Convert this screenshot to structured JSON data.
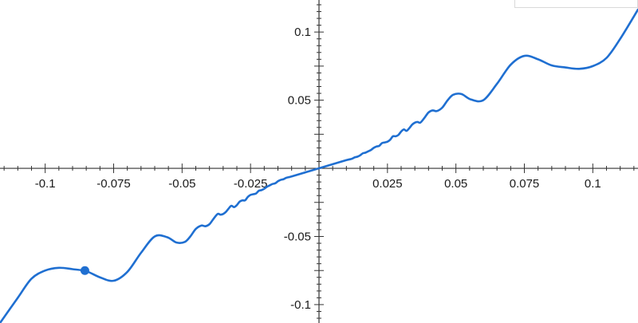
{
  "chart_data": {
    "type": "line",
    "title": "",
    "xlabel": "",
    "ylabel": "",
    "xlim": [
      -0.1165,
      0.1165
    ],
    "ylim": [
      -0.1135,
      0.1235
    ],
    "grid": false,
    "x_ticks": [
      -0.1,
      -0.075,
      -0.05,
      -0.025,
      0.025,
      0.05,
      0.075,
      0.1
    ],
    "x_tick_labels": [
      "-0.1",
      "-0.075",
      "-0.05",
      "-0.025",
      "0.025",
      "0.05",
      "0.075",
      "0.1"
    ],
    "y_ticks": [
      0.1,
      0.05,
      -0.05,
      -0.1
    ],
    "y_tick_labels": [
      "0.1",
      "0.05",
      "-0.05",
      "-0.1"
    ],
    "series": [
      {
        "color": "#1f6fd1",
        "x": [
          -0.1165,
          -0.11,
          -0.105,
          -0.1,
          -0.095,
          -0.09,
          -0.085,
          -0.08,
          -0.075,
          -0.07,
          -0.065,
          -0.06,
          -0.0555,
          -0.052,
          -0.049,
          -0.047,
          -0.045,
          -0.043,
          -0.0415,
          -0.04,
          -0.0385,
          -0.037,
          -0.036,
          -0.035,
          -0.034,
          -0.033,
          -0.032,
          -0.031,
          -0.03,
          -0.029,
          -0.028,
          -0.027,
          -0.026,
          -0.025,
          -0.024,
          -0.023,
          -0.022,
          -0.021,
          -0.02,
          -0.019,
          -0.018,
          -0.017,
          -0.016,
          -0.015,
          -0.014,
          -0.013,
          -0.012,
          -0.011,
          -0.01,
          -0.005,
          0,
          0.005,
          0.01,
          0.011,
          0.012,
          0.013,
          0.014,
          0.015,
          0.016,
          0.017,
          0.018,
          0.019,
          0.02,
          0.021,
          0.022,
          0.023,
          0.024,
          0.025,
          0.026,
          0.027,
          0.028,
          0.029,
          0.03,
          0.031,
          0.032,
          0.033,
          0.034,
          0.035,
          0.036,
          0.037,
          0.0385,
          0.04,
          0.0415,
          0.043,
          0.045,
          0.047,
          0.049,
          0.052,
          0.0555,
          0.06,
          0.065,
          0.07,
          0.075,
          0.08,
          0.085,
          0.09,
          0.095,
          0.1,
          0.105,
          0.11,
          0.1165
        ],
        "y": [
          -0.1135,
          -0.095,
          -0.081,
          -0.075,
          -0.073,
          -0.074,
          -0.0755,
          -0.08,
          -0.0825,
          -0.076,
          -0.062,
          -0.05,
          -0.0505,
          -0.0545,
          -0.054,
          -0.05,
          -0.0445,
          -0.042,
          -0.0425,
          -0.041,
          -0.037,
          -0.0335,
          -0.034,
          -0.0335,
          -0.032,
          -0.0295,
          -0.0275,
          -0.0285,
          -0.027,
          -0.0245,
          -0.0235,
          -0.0235,
          -0.021,
          -0.0195,
          -0.019,
          -0.0185,
          -0.0165,
          -0.016,
          -0.015,
          -0.0135,
          -0.0125,
          -0.0115,
          -0.011,
          -0.0095,
          -0.0085,
          -0.008,
          -0.007,
          -0.0065,
          -0.006,
          -0.003,
          0,
          0.003,
          0.006,
          0.0065,
          0.007,
          0.008,
          0.0085,
          0.0095,
          0.011,
          0.0115,
          0.0125,
          0.0135,
          0.015,
          0.016,
          0.0165,
          0.0185,
          0.019,
          0.0195,
          0.021,
          0.0235,
          0.0235,
          0.0245,
          0.027,
          0.0285,
          0.0275,
          0.0295,
          0.032,
          0.0335,
          0.034,
          0.0335,
          0.037,
          0.041,
          0.0425,
          0.042,
          0.0445,
          0.05,
          0.054,
          0.0545,
          0.0505,
          0.05,
          0.062,
          0.076,
          0.0825,
          0.08,
          0.0755,
          0.074,
          0.073,
          0.075,
          0.081,
          0.095,
          0.1165
        ]
      }
    ],
    "highlight_point": {
      "x": -0.0855,
      "y": -0.075,
      "color": "#1f6fd1"
    },
    "axis_color": "#333333"
  }
}
